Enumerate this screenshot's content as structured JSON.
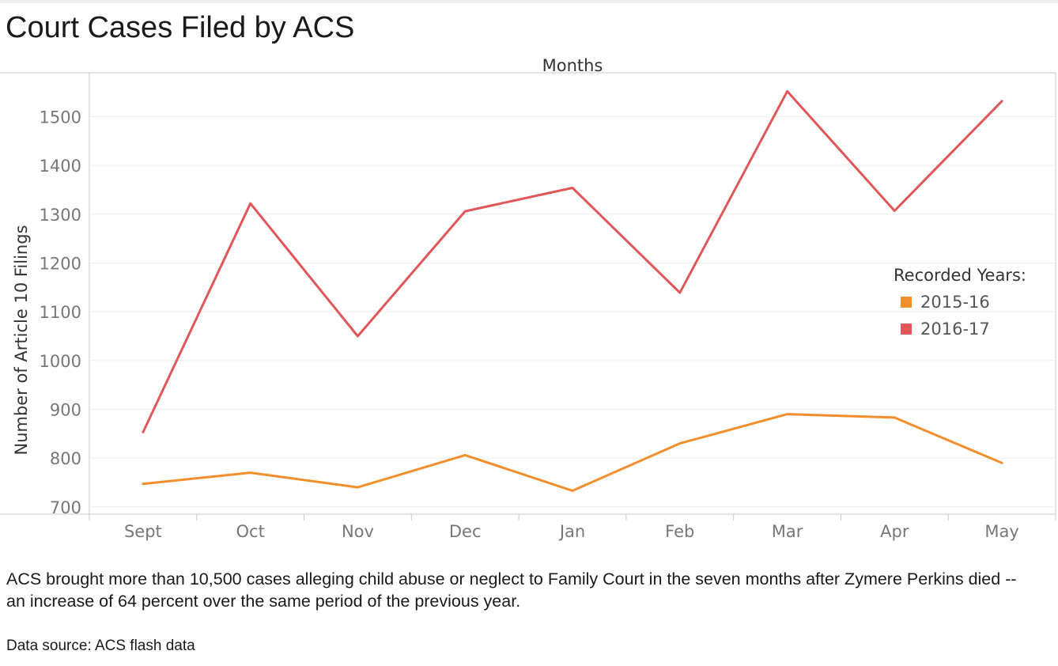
{
  "title": "Court Cases Filed by ACS",
  "caption": "ACS brought more than 10,500 cases alleging child abuse or neglect to Family Court in the seven months after Zymere Perkins died -- an increase of 64 percent over the same period of the previous year.",
  "source": "Data source: ACS flash data",
  "colors": {
    "s2015": "#f28e2b",
    "s2016": "#e15759"
  },
  "chart_data": {
    "type": "line",
    "xlabel": "Months",
    "ylabel": "Number of Article 10 Filings",
    "categories": [
      "Sept",
      "Oct",
      "Nov",
      "Dec",
      "Jan",
      "Feb",
      "Mar",
      "Apr",
      "May"
    ],
    "yticks": [
      700,
      800,
      900,
      1000,
      1100,
      1200,
      1300,
      1400,
      1500
    ],
    "ylim": [
      685,
      1590
    ],
    "grid": true,
    "legend": {
      "title": "Recorded Years:",
      "position": "right"
    },
    "series": [
      {
        "name": "2015-16",
        "values": [
          747,
          770,
          740,
          806,
          733,
          830,
          890,
          883,
          790
        ]
      },
      {
        "name": "2016-17",
        "values": [
          853,
          1322,
          1050,
          1306,
          1354,
          1139,
          1552,
          1307,
          1532
        ]
      }
    ]
  }
}
